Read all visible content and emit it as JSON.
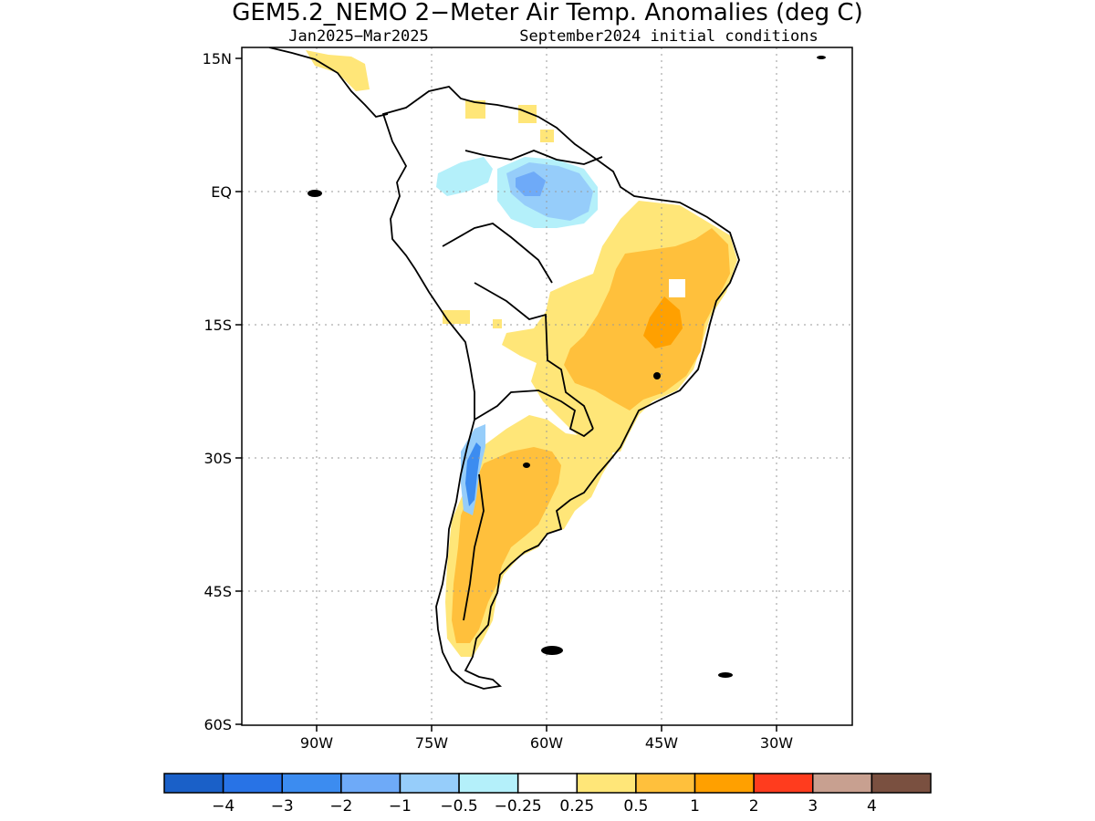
{
  "title": "GEM5.2_NEMO 2−Meter Air Temp. Anomalies (deg C)",
  "subtitle_period": "Jan2025−Mar2025",
  "subtitle_init": "September2024 initial conditions",
  "lat_ticks": [
    "15N",
    "EQ",
    "15S",
    "30S",
    "45S",
    "60S"
  ],
  "lon_ticks": [
    "90W",
    "75W",
    "60W",
    "45W",
    "30W"
  ],
  "map": {
    "lon_range": [
      -100,
      -20
    ],
    "lat_range": [
      -60,
      15
    ],
    "grid": true,
    "region": "South America"
  },
  "colorbar": {
    "colors": [
      "#1a60c8",
      "#2873e6",
      "#3c8cf0",
      "#6eaaf8",
      "#96cdfa",
      "#b4f0fa",
      "#ffffff",
      "#ffe678",
      "#ffc03c",
      "#ffa000",
      "#ff3c1e",
      "#c8a090",
      "#7a5040"
    ],
    "labels": [
      "−4",
      "−3",
      "−2",
      "−1",
      "−0.5",
      "−0.25",
      "0.25",
      "0.5",
      "1",
      "2",
      "3",
      "4"
    ]
  },
  "anomaly_regions": [
    {
      "name": "northeast-brazil-warm",
      "level": "0.5-1"
    },
    {
      "name": "central-brazil-warm-core",
      "level": "1-2"
    },
    {
      "name": "argentina-warm",
      "level": "0.5-1"
    },
    {
      "name": "amazon-cool",
      "level": "-1 to -0.5"
    },
    {
      "name": "andes-cool",
      "level": "-2 to -1"
    }
  ]
}
